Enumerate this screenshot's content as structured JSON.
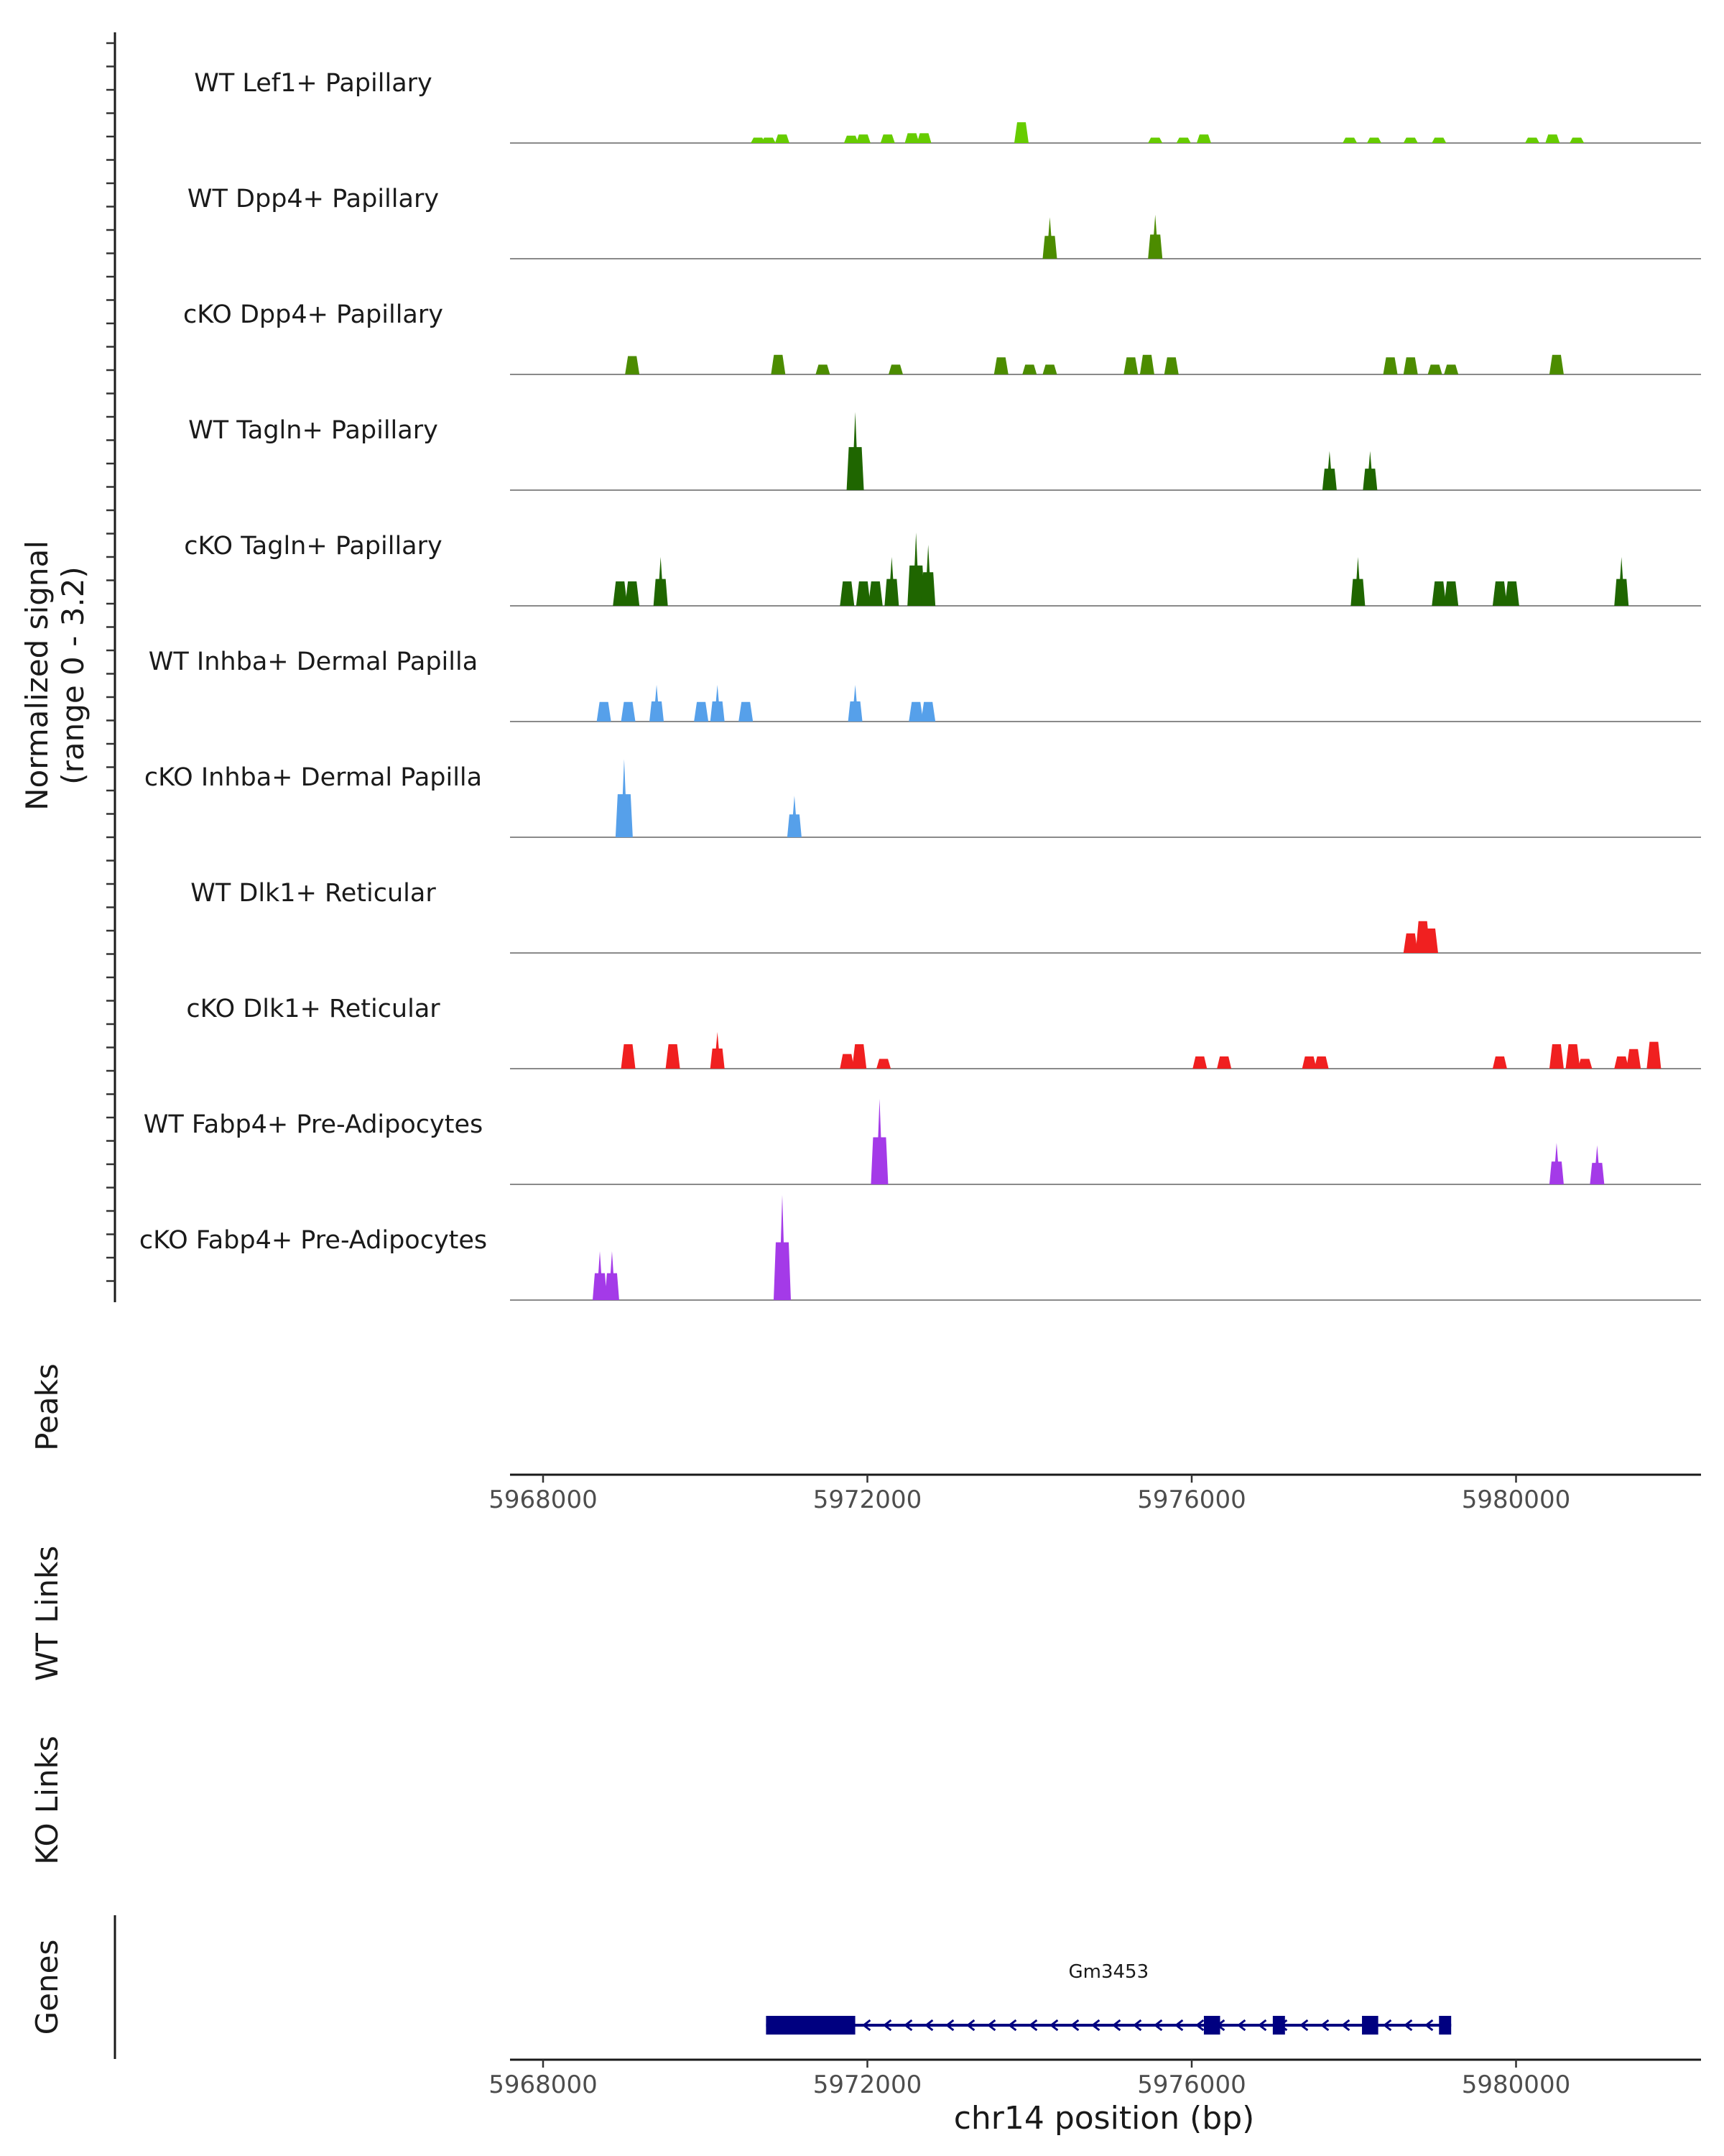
{
  "chart_data": {
    "type": "area",
    "chromosome": "chr14",
    "xlim": [
      5967600,
      5982300
    ],
    "signal_range": [
      0,
      3.2
    ],
    "ylabel_signal": "Normalized signal",
    "ylabel_signal_range": "(range 0 - 3.2)",
    "ylabel_peaks": "Peaks",
    "ylabel_wt_links": "WT Links",
    "ylabel_ko_links": "KO Links",
    "ylabel_genes": "Genes",
    "xlabel": "chr14 position (bp)",
    "xticks": [
      5968000,
      5972000,
      5976000,
      5980000
    ],
    "xtick_labels": [
      "5968000",
      "5972000",
      "5976000",
      "5980000"
    ],
    "tracks": [
      {
        "name": "WT Lef1+ Papillary",
        "color": "#66cc00",
        "peaks": [
          [
            5970650,
            0.22
          ],
          [
            5970780,
            0.22
          ],
          [
            5970950,
            0.35
          ],
          [
            5971800,
            0.3
          ],
          [
            5971950,
            0.35
          ],
          [
            5972250,
            0.35
          ],
          [
            5972550,
            0.4
          ],
          [
            5972700,
            0.4
          ],
          [
            5973900,
            0.85
          ],
          [
            5975550,
            0.22
          ],
          [
            5975900,
            0.22
          ],
          [
            5976150,
            0.35
          ],
          [
            5977950,
            0.22
          ],
          [
            5978250,
            0.22
          ],
          [
            5978700,
            0.22
          ],
          [
            5979050,
            0.22
          ],
          [
            5980200,
            0.22
          ],
          [
            5980450,
            0.35
          ],
          [
            5980750,
            0.22
          ]
        ]
      },
      {
        "name": "WT Dpp4+ Papillary",
        "color": "#4c8c00",
        "peaks": [
          [
            5974250,
            1.7
          ],
          [
            5975550,
            1.8
          ]
        ]
      },
      {
        "name": "cKO Dpp4+ Papillary",
        "color": "#4c8c00",
        "peaks": [
          [
            5969100,
            0.75
          ],
          [
            5970900,
            0.8
          ],
          [
            5971450,
            0.4
          ],
          [
            5972350,
            0.4
          ],
          [
            5973650,
            0.7
          ],
          [
            5974000,
            0.4
          ],
          [
            5974250,
            0.4
          ],
          [
            5975250,
            0.7
          ],
          [
            5975450,
            0.8
          ],
          [
            5975750,
            0.7
          ],
          [
            5978450,
            0.7
          ],
          [
            5978700,
            0.7
          ],
          [
            5979000,
            0.4
          ],
          [
            5979200,
            0.4
          ],
          [
            5980500,
            0.8
          ]
        ]
      },
      {
        "name": "WT Tagln+ Papillary",
        "color": "#1f6600",
        "peaks": [
          [
            5971850,
            3.2
          ],
          [
            5977700,
            1.6
          ],
          [
            5978200,
            1.6
          ]
        ]
      },
      {
        "name": "cKO Tagln+ Papillary",
        "color": "#1f6600",
        "peaks": [
          [
            5968950,
            1.0
          ],
          [
            5969100,
            1.0
          ],
          [
            5969450,
            2.0
          ],
          [
            5971750,
            1.0
          ],
          [
            5971950,
            1.0
          ],
          [
            5972100,
            1.0
          ],
          [
            5972300,
            2.0
          ],
          [
            5972600,
            3.0
          ],
          [
            5972750,
            2.5
          ],
          [
            5978050,
            2.0
          ],
          [
            5979050,
            1.0
          ],
          [
            5979200,
            1.0
          ],
          [
            5979800,
            1.0
          ],
          [
            5979950,
            1.0
          ],
          [
            5981300,
            2.0
          ]
        ]
      },
      {
        "name": "WT Inhba+ Dermal Papilla",
        "color": "#56a0ea",
        "peaks": [
          [
            5968750,
            0.8
          ],
          [
            5969050,
            0.8
          ],
          [
            5969400,
            1.5
          ],
          [
            5969950,
            0.8
          ],
          [
            5970150,
            1.5
          ],
          [
            5970500,
            0.8
          ],
          [
            5971850,
            1.5
          ],
          [
            5972600,
            0.8
          ],
          [
            5972750,
            0.8
          ]
        ]
      },
      {
        "name": "cKO Inhba+ Dermal Papilla",
        "color": "#56a0ea",
        "peaks": [
          [
            5969000,
            3.2
          ],
          [
            5971100,
            1.7
          ]
        ]
      },
      {
        "name": "WT Dlk1+ Reticular",
        "color": "#f02020",
        "peaks": [
          [
            5978700,
            0.8
          ],
          [
            5978850,
            1.3
          ],
          [
            5978950,
            1.0
          ]
        ]
      },
      {
        "name": "cKO Dlk1+ Reticular",
        "color": "#f02020",
        "peaks": [
          [
            5969050,
            1.0
          ],
          [
            5969600,
            1.0
          ],
          [
            5970150,
            1.5
          ],
          [
            5971750,
            0.6
          ],
          [
            5971900,
            1.0
          ],
          [
            5972200,
            0.4
          ],
          [
            5976100,
            0.5
          ],
          [
            5976400,
            0.5
          ],
          [
            5977450,
            0.5
          ],
          [
            5977600,
            0.5
          ],
          [
            5979800,
            0.5
          ],
          [
            5980500,
            1.0
          ],
          [
            5980700,
            1.0
          ],
          [
            5980850,
            0.4
          ],
          [
            5981300,
            0.5
          ],
          [
            5981450,
            0.8
          ],
          [
            5981700,
            1.1
          ]
        ]
      },
      {
        "name": "WT Fabp4+ Pre-Adipocytes",
        "color": "#a43ae8",
        "peaks": [
          [
            5972150,
            3.5
          ],
          [
            5980500,
            1.7
          ],
          [
            5981000,
            1.6
          ]
        ]
      },
      {
        "name": "cKO Fabp4+ Pre-Adipocytes",
        "color": "#a43ae8",
        "peaks": [
          [
            5968700,
            2.0
          ],
          [
            5968850,
            2.0
          ],
          [
            5970950,
            4.3
          ]
        ]
      }
    ],
    "gene": {
      "name": "Gm3453",
      "color": "#000080",
      "start": 5970750,
      "end": 5979200,
      "strand": "-",
      "exons": [
        [
          5970750,
          5971850
        ],
        [
          5976150,
          5976350
        ],
        [
          5977000,
          5977150
        ],
        [
          5978100,
          5978300
        ],
        [
          5979050,
          5979200
        ]
      ]
    }
  }
}
